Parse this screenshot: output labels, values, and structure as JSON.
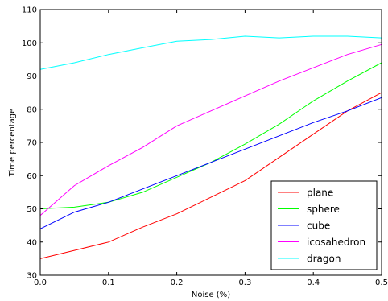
{
  "chart_data": {
    "type": "line",
    "title": "",
    "xlabel": "Noise (%)",
    "ylabel": "Time percentage",
    "xlim": [
      0.0,
      0.5
    ],
    "ylim": [
      30,
      110
    ],
    "x": [
      0.0,
      0.05,
      0.1,
      0.15,
      0.2,
      0.25,
      0.3,
      0.35,
      0.4,
      0.45,
      0.5
    ],
    "xticks": [
      "0.0",
      "0.1",
      "0.2",
      "0.3",
      "0.4",
      "0.5"
    ],
    "xtick_values": [
      0.0,
      0.1,
      0.2,
      0.3,
      0.4,
      0.5
    ],
    "yticks": [
      "30",
      "40",
      "50",
      "60",
      "70",
      "80",
      "90",
      "100",
      "110"
    ],
    "ytick_values": [
      30,
      40,
      50,
      60,
      70,
      80,
      90,
      100,
      110
    ],
    "grid": false,
    "legend_position": "lower-right",
    "series": [
      {
        "name": "plane",
        "color": "#ff0000",
        "values": [
          35,
          37.5,
          40,
          44.5,
          48.5,
          53.5,
          58.5,
          65.5,
          72.5,
          79.5,
          85
        ]
      },
      {
        "name": "sphere",
        "color": "#00ff00",
        "values": [
          50,
          50.5,
          52,
          55,
          59.5,
          64,
          69.5,
          75.5,
          82.5,
          88.5,
          94
        ]
      },
      {
        "name": "cube",
        "color": "#0000ff",
        "values": [
          44,
          49,
          52,
          56,
          60,
          64,
          68,
          72,
          76,
          79.5,
          83.5
        ]
      },
      {
        "name": "icosahedron",
        "color": "#ff00ff",
        "values": [
          48,
          57,
          63,
          68.5,
          75,
          79.5,
          84,
          88.5,
          92.5,
          96.5,
          99.5
        ]
      },
      {
        "name": "dragon",
        "color": "#00ffff",
        "values": [
          92,
          94,
          96.5,
          98.5,
          100.5,
          101,
          102,
          101.5,
          102,
          102,
          101.5
        ]
      }
    ]
  }
}
